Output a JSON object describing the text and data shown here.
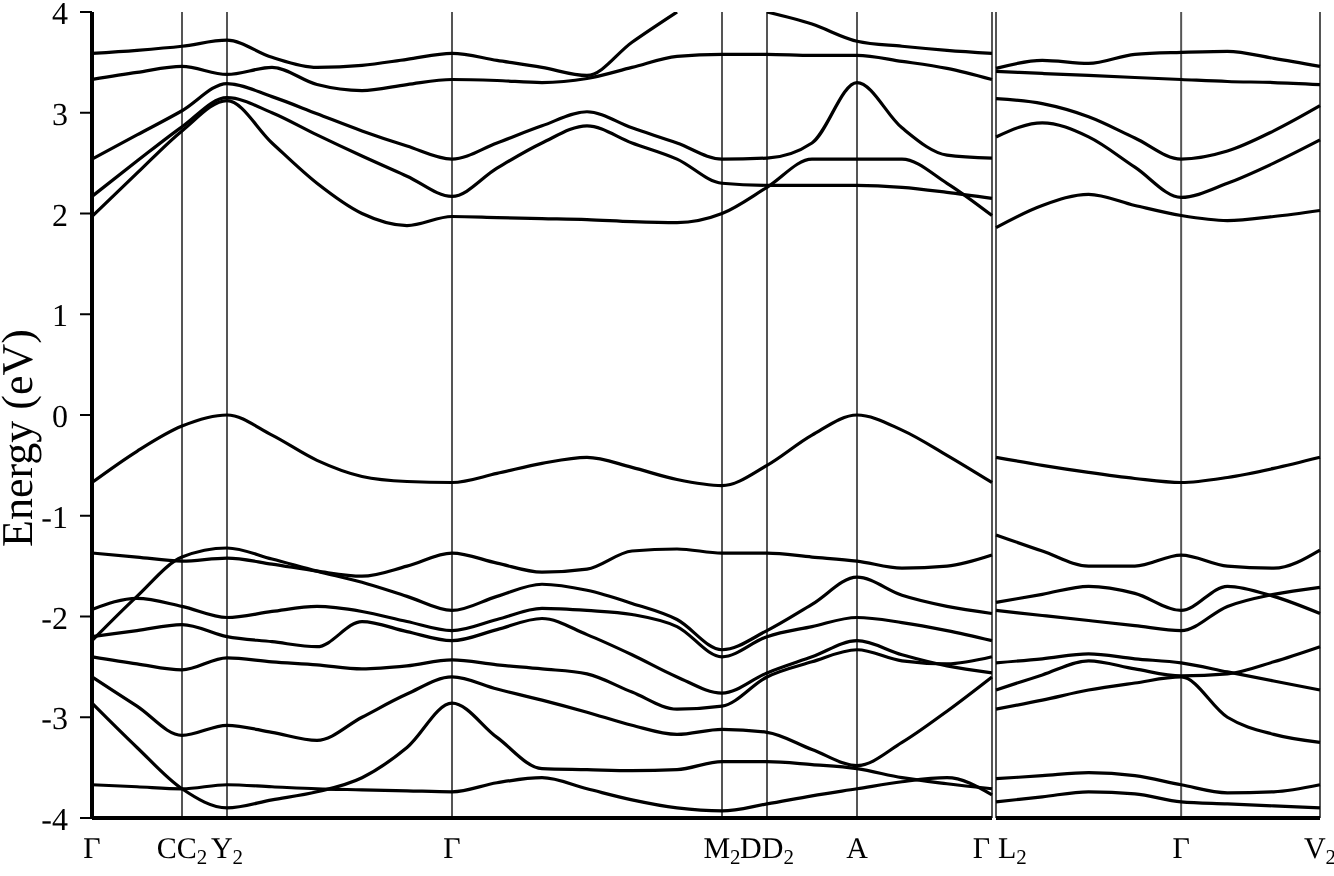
{
  "chart_data": [
    {
      "type": "line",
      "ylabel": "Energy (eV)",
      "categories": [
        "Γ",
        null,
        "CC$_{2}$",
        "Y$_{2}$",
        null,
        null,
        null,
        null,
        "Γ",
        null,
        null,
        null,
        null,
        null,
        "M$_{2}$",
        "DD$_{2}$",
        null,
        "A",
        null,
        null,
        "Γ"
      ],
      "ylim": [
        -4,
        4
      ],
      "yticks": [
        -4,
        -3,
        -2,
        -1,
        0,
        1,
        2,
        3,
        4
      ],
      "grid": "x",
      "marker": "none",
      "line_style": "solid",
      "series": [
        {
          "color": "#000000",
          "values": [
            3.59,
            3.62,
            3.66,
            3.72,
            3.55,
            3.45,
            3.47,
            3.53,
            3.59,
            3.52,
            3.45,
            3.37,
            3.7,
            4.0,
            null,
            4.0,
            3.88,
            3.71,
            3.66,
            3.62,
            3.59
          ]
        },
        {
          "color": "#000000",
          "values": [
            3.33,
            3.4,
            3.46,
            3.38,
            3.45,
            3.28,
            3.22,
            3.28,
            3.33,
            3.32,
            3.3,
            3.34,
            3.45,
            3.56,
            3.58,
            3.58,
            3.57,
            3.57,
            3.51,
            3.44,
            3.33
          ]
        },
        {
          "color": "#000000",
          "values": [
            2.54,
            2.78,
            3.02,
            3.29,
            3.16,
            2.99,
            2.82,
            2.67,
            2.54,
            2.7,
            2.87,
            3.01,
            2.85,
            2.7,
            2.54,
            2.55,
            2.7,
            3.3,
            2.85,
            2.58,
            2.55
          ]
        },
        {
          "color": "#000000",
          "values": [
            2.17,
            2.52,
            2.86,
            3.15,
            3.0,
            2.78,
            2.57,
            2.37,
            2.17,
            2.45,
            2.7,
            2.87,
            2.7,
            2.54,
            2.3,
            2.28,
            2.28,
            2.28,
            2.26,
            2.21,
            2.15
          ]
        },
        {
          "color": "#000000",
          "values": [
            1.97,
            2.4,
            2.82,
            3.12,
            2.7,
            2.3,
            2.0,
            1.88,
            1.97,
            1.96,
            1.95,
            1.94,
            1.92,
            1.91,
            2.0,
            2.26,
            2.54,
            2.54,
            2.54,
            2.3,
            1.98
          ]
        },
        {
          "color": "#000000",
          "values": [
            -0.67,
            -0.36,
            -0.11,
            0.0,
            -0.2,
            -0.45,
            -0.61,
            -0.66,
            -0.67,
            -0.58,
            -0.48,
            -0.42,
            -0.52,
            -0.64,
            -0.7,
            -0.5,
            -0.2,
            0.0,
            -0.15,
            -0.4,
            -0.67
          ]
        },
        {
          "color": "#000000",
          "values": [
            -1.37,
            -1.41,
            -1.45,
            -1.42,
            -1.48,
            -1.55,
            -1.6,
            -1.5,
            -1.37,
            -1.47,
            -1.56,
            -1.53,
            -1.35,
            -1.33,
            -1.37,
            -1.37,
            -1.41,
            -1.45,
            -1.52,
            -1.5,
            -1.39
          ]
        },
        {
          "color": "#000000",
          "values": [
            -2.24,
            -1.8,
            -1.41,
            -1.32,
            -1.43,
            -1.55,
            -1.66,
            -1.8,
            -1.94,
            -1.8,
            -1.68,
            -1.74,
            -1.87,
            -2.03,
            -2.33,
            -2.14,
            -1.88,
            -1.61,
            -1.79,
            -1.9,
            -1.97
          ]
        },
        {
          "color": "#000000",
          "values": [
            -1.93,
            -1.82,
            -1.9,
            -2.01,
            -1.95,
            -1.9,
            -1.95,
            -2.05,
            -2.14,
            -2.03,
            -1.92,
            -1.94,
            -1.98,
            -2.1,
            -2.4,
            -2.2,
            -2.1,
            -2.01,
            -2.06,
            -2.14,
            -2.24
          ]
        },
        {
          "color": "#000000",
          "values": [
            -2.2,
            -2.14,
            -2.08,
            -2.2,
            -2.25,
            -2.3,
            -2.05,
            -2.15,
            -2.24,
            -2.13,
            -2.02,
            -2.18,
            -2.38,
            -2.6,
            -2.76,
            -2.56,
            -2.4,
            -2.24,
            -2.38,
            -2.49,
            -2.56
          ]
        },
        {
          "color": "#000000",
          "values": [
            -2.4,
            -2.47,
            -2.53,
            -2.41,
            -2.45,
            -2.48,
            -2.52,
            -2.49,
            -2.43,
            -2.48,
            -2.52,
            -2.57,
            -2.75,
            -2.92,
            -2.89,
            -2.6,
            -2.45,
            -2.33,
            -2.44,
            -2.47,
            -2.4
          ]
        },
        {
          "color": "#000000",
          "values": [
            -2.6,
            -2.89,
            -3.18,
            -3.08,
            -3.15,
            -3.23,
            -3.0,
            -2.77,
            -2.6,
            -2.72,
            -2.83,
            -2.95,
            -3.08,
            -3.17,
            -3.12,
            -3.15,
            -3.32,
            -3.48,
            -3.25,
            -2.94,
            -2.6
          ]
        },
        {
          "color": "#000000",
          "values": [
            -2.86,
            -3.3,
            -3.71,
            -3.9,
            -3.82,
            -3.74,
            -3.6,
            -3.3,
            -2.86,
            -3.2,
            -3.51,
            -3.52,
            -3.53,
            -3.52,
            -3.44,
            -3.44,
            -3.47,
            -3.51,
            -3.6,
            -3.66,
            -3.71
          ]
        },
        {
          "color": "#000000",
          "values": [
            -3.67,
            -3.69,
            -3.71,
            -3.67,
            -3.69,
            -3.71,
            -3.72,
            -3.73,
            -3.74,
            -3.65,
            -3.6,
            -3.71,
            -3.82,
            -3.9,
            -3.93,
            -3.86,
            -3.78,
            -3.71,
            -3.64,
            -3.6,
            -3.77
          ]
        }
      ]
    },
    {
      "type": "line",
      "categories": [
        "L$_{2}$",
        null,
        null,
        null,
        "Γ",
        null,
        null,
        "V$_{2}$"
      ],
      "ylim": [
        -4,
        4
      ],
      "yticks": [
        -4,
        -3,
        -2,
        -1,
        0,
        1,
        2,
        3,
        4
      ],
      "tick_labels": "x",
      "grid": "x",
      "marker": "none",
      "line_style": "solid",
      "series": [
        {
          "color": "#000000",
          "values": [
            3.44,
            3.52,
            3.49,
            3.58,
            3.6,
            3.61,
            3.54,
            3.46
          ]
        },
        {
          "color": "#000000",
          "values": [
            3.41,
            3.39,
            3.37,
            3.35,
            3.33,
            3.31,
            3.3,
            3.28
          ]
        },
        {
          "color": "#000000",
          "values": [
            3.14,
            3.09,
            2.96,
            2.75,
            2.54,
            2.62,
            2.82,
            3.07
          ]
        },
        {
          "color": "#000000",
          "values": [
            2.76,
            2.9,
            2.76,
            2.46,
            2.16,
            2.3,
            2.5,
            2.73
          ]
        },
        {
          "color": "#000000",
          "values": [
            1.86,
            2.08,
            2.19,
            2.08,
            1.98,
            1.93,
            1.97,
            2.03
          ]
        },
        {
          "color": "#000000",
          "values": [
            -0.42,
            -0.5,
            -0.57,
            -0.63,
            -0.67,
            -0.62,
            -0.53,
            -0.42
          ]
        },
        {
          "color": "#000000",
          "values": [
            -1.19,
            -1.35,
            -1.5,
            -1.5,
            -1.39,
            -1.5,
            -1.52,
            -1.34
          ]
        },
        {
          "color": "#000000",
          "values": [
            -1.86,
            -1.78,
            -1.7,
            -1.77,
            -1.94,
            -1.7,
            -1.8,
            -1.97
          ]
        },
        {
          "color": "#000000",
          "values": [
            -1.94,
            -1.99,
            -2.04,
            -2.09,
            -2.14,
            -1.9,
            -1.78,
            -1.71
          ]
        },
        {
          "color": "#000000",
          "values": [
            -2.46,
            -2.42,
            -2.37,
            -2.42,
            -2.46,
            -2.55,
            -2.64,
            -2.73
          ]
        },
        {
          "color": "#000000",
          "values": [
            -2.73,
            -2.58,
            -2.44,
            -2.52,
            -2.59,
            -2.57,
            -2.45,
            -2.3
          ]
        },
        {
          "color": "#000000",
          "values": [
            -2.92,
            -2.83,
            -2.73,
            -2.66,
            -2.6,
            -3.0,
            -3.17,
            -3.25
          ]
        },
        {
          "color": "#000000",
          "values": [
            -3.61,
            -3.58,
            -3.55,
            -3.58,
            -3.67,
            -3.75,
            -3.74,
            -3.67
          ]
        },
        {
          "color": "#000000",
          "values": [
            -3.84,
            -3.79,
            -3.74,
            -3.76,
            -3.84,
            -3.86,
            -3.88,
            -3.9
          ]
        }
      ]
    }
  ]
}
